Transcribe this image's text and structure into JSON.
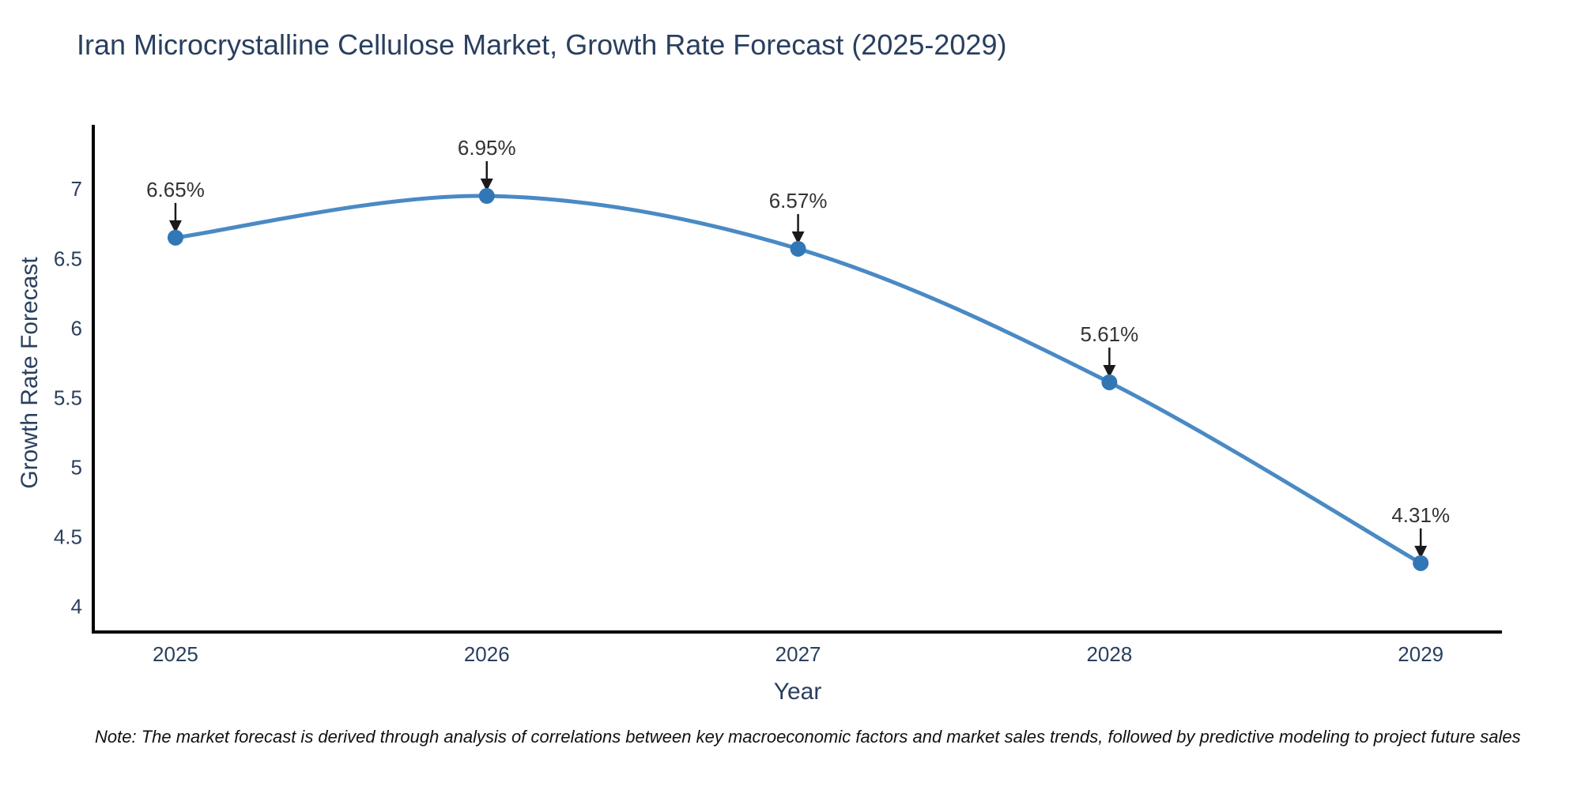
{
  "figure": {
    "note": "Note: The market forecast is derived through analysis of correlations between key macroeconomic factors and market sales trends, followed by predictive modeling to project future sales"
  },
  "chart_data": {
    "type": "line",
    "title": "Iran Microcrystalline Cellulose Market, Growth Rate Forecast (2025-2029)",
    "xlabel": "Year",
    "ylabel": "Growth Rate Forecast",
    "x": [
      2025,
      2026,
      2027,
      2028,
      2029
    ],
    "values": [
      6.65,
      6.95,
      6.57,
      5.61,
      4.31
    ],
    "point_labels": [
      "6.65%",
      "6.95%",
      "6.57%",
      "5.61%",
      "4.31%"
    ],
    "xtick_labels": [
      "2025",
      "2026",
      "2027",
      "2028",
      "2029"
    ],
    "yticks": [
      4,
      4.5,
      5,
      5.5,
      6,
      6.5,
      7
    ],
    "xlim": [
      2024.736,
      2029.261
    ],
    "ylim": [
      3.815,
      7.45
    ],
    "grid": false,
    "legend": "none",
    "line_shape": "spline",
    "colors": {
      "line": "#4a8ac4",
      "marker": "#3277b5",
      "axis": "#000000",
      "title": "#2a3f5f",
      "tick": "#2a3f5f",
      "annotation": "#333333",
      "arrow": "#1a1a1a",
      "note": "#111111",
      "background": "#ffffff"
    }
  }
}
